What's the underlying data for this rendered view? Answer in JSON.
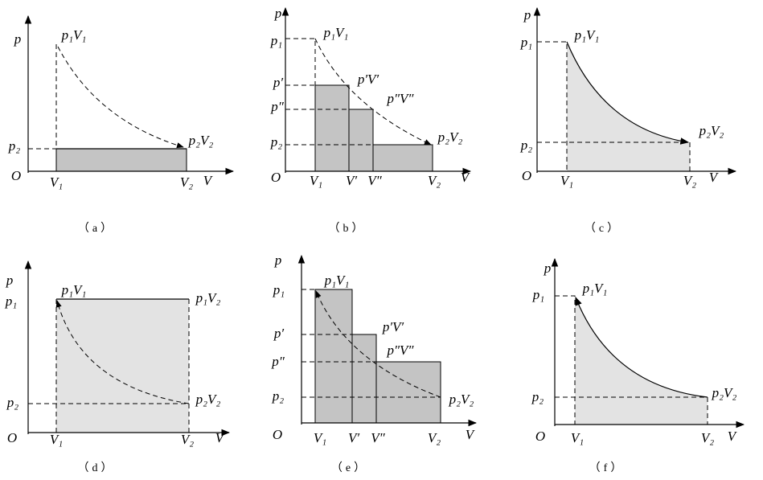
{
  "panels": [
    {
      "caption": "（a）",
      "labels": [
        "p",
        "O",
        "p₁V₁",
        "p₂",
        "p₂V₂",
        "V₁",
        "V₂",
        "V"
      ]
    },
    {
      "caption": "（b）",
      "labels": [
        "p",
        "p₁",
        "p₁V₁",
        "p′",
        "p′V′",
        "p″",
        "p″V″",
        "p₂",
        "p₂V₂",
        "O",
        "V₁",
        "V′",
        "V″",
        "V₂",
        "V"
      ]
    },
    {
      "caption": "（c）",
      "labels": [
        "p",
        "p₁",
        "p₁V₁",
        "p₂",
        "p₂V₂",
        "O",
        "V₁",
        "V₂",
        "V"
      ]
    },
    {
      "caption": "（d）",
      "labels": [
        "p",
        "p₁",
        "p₁V₁",
        "p₁V₂",
        "p₂",
        "p₂V₂",
        "O",
        "V₁",
        "V₂",
        "V"
      ]
    },
    {
      "caption": "（e）",
      "labels": [
        "p",
        "p₁",
        "p₁V₁",
        "p′",
        "p′V′",
        "p″",
        "p″V″",
        "p₂",
        "p₂V₂",
        "O",
        "V₁",
        "V′",
        "V″",
        "V₂",
        "V"
      ]
    },
    {
      "caption": "（f）",
      "labels": [
        "p",
        "p₁",
        "p₁V₁",
        "p₂",
        "p₂V₂",
        "O",
        "V₁",
        "V₂",
        "V"
      ]
    }
  ]
}
